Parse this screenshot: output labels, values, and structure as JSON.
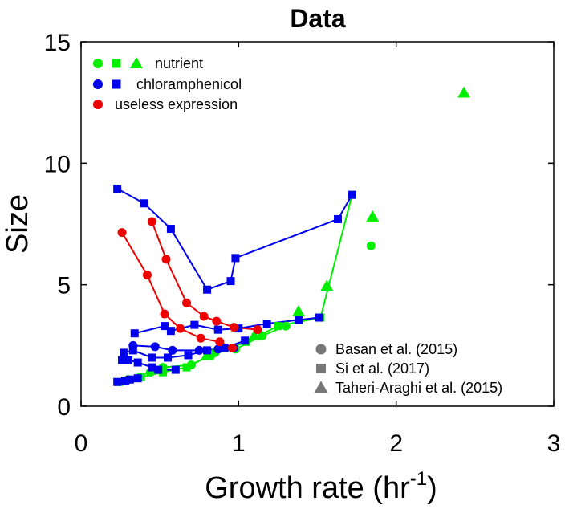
{
  "chart_data": {
    "type": "scatter",
    "title": "Data",
    "xlabel": "Growth rate (hr",
    "xlabel_sup": "-1",
    "xlabel_close": ")",
    "ylabel": "Size",
    "xlim": [
      0,
      3
    ],
    "ylim": [
      0,
      15
    ],
    "xticks": [
      "0",
      "1",
      "2",
      "3"
    ],
    "yticks": [
      "0",
      "5",
      "10",
      "15"
    ],
    "grid": false,
    "colors": {
      "nutrient": "#00ee00",
      "chloramphenicol": "#0000ee",
      "useless": "#ee0000"
    },
    "legend_color": [
      {
        "label": "nutrient",
        "color": "#00ee00",
        "markers": [
          "circle",
          "square",
          "triangle"
        ]
      },
      {
        "label": "chloramphenicol",
        "color": "#0000ee",
        "markers": [
          "circle",
          "square"
        ]
      },
      {
        "label": "useless expression",
        "color": "#ee0000",
        "markers": [
          "circle"
        ]
      }
    ],
    "legend_source": [
      {
        "label": "Basan et al. (2015)",
        "marker": "circle",
        "color": "#777777"
      },
      {
        "label": "Si et al. (2017)",
        "marker": "square",
        "color": "#777777"
      },
      {
        "label": "Taheri-Araghi et al. (2015)",
        "marker": "triangle",
        "color": "#777777"
      }
    ],
    "series": [
      {
        "group": "nutrient",
        "source": "Basan",
        "marker": "circle",
        "line": true,
        "points": [
          [
            0.3,
            1.1
          ],
          [
            0.44,
            1.4
          ],
          [
            0.52,
            1.6
          ],
          [
            0.7,
            1.7
          ],
          [
            0.85,
            2.2
          ],
          [
            0.98,
            2.35
          ],
          [
            1.15,
            2.9
          ],
          [
            1.3,
            3.3
          ]
        ]
      },
      {
        "group": "nutrient",
        "source": "Basan",
        "marker": "circle",
        "line": false,
        "points": [
          [
            1.84,
            6.6
          ]
        ]
      },
      {
        "group": "nutrient",
        "source": "Si",
        "marker": "square",
        "line": true,
        "points": [
          [
            0.24,
            1.0
          ],
          [
            0.38,
            1.2
          ],
          [
            0.52,
            1.4
          ],
          [
            0.67,
            1.6
          ],
          [
            0.82,
            2.1
          ],
          [
            1.05,
            2.65
          ],
          [
            1.25,
            3.3
          ],
          [
            1.52,
            3.65
          ],
          [
            1.72,
            8.7
          ]
        ]
      },
      {
        "group": "nutrient",
        "source": "Taheri-Araghi",
        "marker": "triangle",
        "line": false,
        "points": [
          [
            0.8,
            2.1
          ],
          [
            1.1,
            2.9
          ],
          [
            1.38,
            3.9
          ],
          [
            1.56,
            4.95
          ],
          [
            1.85,
            7.8
          ],
          [
            2.43,
            12.9
          ]
        ]
      },
      {
        "group": "chloramphenicol",
        "source": "Si",
        "marker": "square",
        "line": true,
        "points": [
          [
            0.23,
            8.95
          ],
          [
            0.4,
            8.35
          ],
          [
            0.57,
            7.3
          ],
          [
            0.8,
            4.8
          ],
          [
            0.95,
            5.15
          ],
          [
            0.98,
            6.1
          ],
          [
            1.63,
            7.7
          ],
          [
            1.72,
            8.7
          ]
        ]
      },
      {
        "group": "chloramphenicol",
        "source": "Si",
        "marker": "square",
        "line": true,
        "points": [
          [
            0.34,
            3.0
          ],
          [
            0.53,
            3.3
          ],
          [
            0.57,
            3.1
          ],
          [
            0.72,
            3.35
          ],
          [
            0.87,
            3.15
          ],
          [
            1.0,
            3.2
          ],
          [
            1.18,
            3.4
          ],
          [
            1.38,
            3.55
          ],
          [
            1.51,
            3.65
          ]
        ]
      },
      {
        "group": "chloramphenicol",
        "source": "Si",
        "marker": "square",
        "line": true,
        "points": [
          [
            0.27,
            2.2
          ],
          [
            0.33,
            2.3
          ],
          [
            0.45,
            2.0
          ],
          [
            0.55,
            2.0
          ],
          [
            0.68,
            2.1
          ],
          [
            0.8,
            2.3
          ],
          [
            0.91,
            2.4
          ],
          [
            1.04,
            2.7
          ]
        ]
      },
      {
        "group": "chloramphenicol",
        "source": "Si",
        "marker": "square",
        "line": true,
        "points": [
          [
            0.26,
            1.9
          ],
          [
            0.3,
            1.9
          ],
          [
            0.36,
            1.8
          ],
          [
            0.45,
            1.6
          ],
          [
            0.49,
            1.5
          ],
          [
            0.6,
            1.5
          ]
        ]
      },
      {
        "group": "chloramphenicol",
        "source": "Si",
        "marker": "square",
        "line": true,
        "points": [
          [
            0.23,
            1.0
          ],
          [
            0.28,
            1.05
          ],
          [
            0.31,
            1.1
          ],
          [
            0.36,
            1.15
          ]
        ]
      },
      {
        "group": "chloramphenicol",
        "source": "Basan",
        "marker": "circle",
        "line": true,
        "points": [
          [
            0.33,
            2.5
          ],
          [
            0.47,
            2.45
          ],
          [
            0.58,
            2.3
          ],
          [
            0.75,
            2.3
          ],
          [
            0.87,
            2.35
          ],
          [
            0.97,
            2.4
          ]
        ]
      },
      {
        "group": "useless",
        "source": "Basan",
        "marker": "circle",
        "line": true,
        "points": [
          [
            0.26,
            7.15
          ],
          [
            0.42,
            5.4
          ],
          [
            0.53,
            3.8
          ],
          [
            0.63,
            3.2
          ],
          [
            0.76,
            2.8
          ],
          [
            0.88,
            2.65
          ],
          [
            0.96,
            2.4
          ]
        ]
      },
      {
        "group": "useless",
        "source": "Basan",
        "marker": "circle",
        "line": true,
        "points": [
          [
            0.45,
            7.6
          ],
          [
            0.54,
            6.05
          ],
          [
            0.67,
            4.25
          ],
          [
            0.78,
            3.7
          ],
          [
            0.86,
            3.5
          ],
          [
            0.97,
            3.25
          ],
          [
            1.12,
            3.15
          ]
        ]
      }
    ]
  }
}
